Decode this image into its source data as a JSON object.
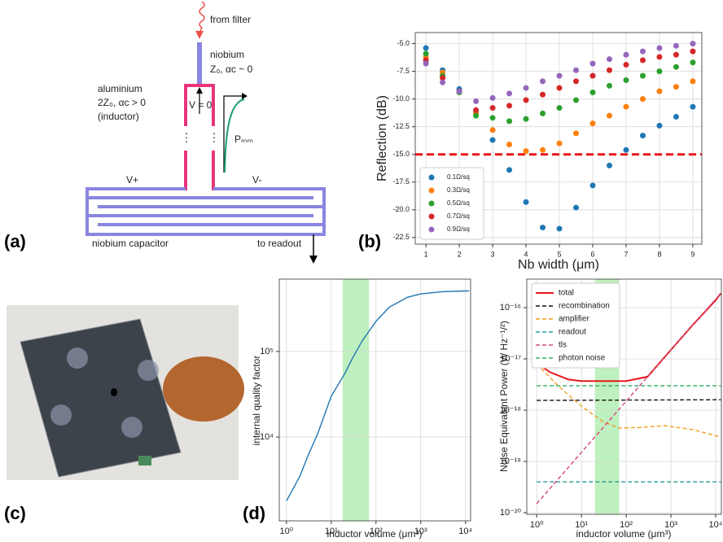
{
  "panel_labels": [
    "(a)",
    "(b)",
    "(c)",
    "(d)"
  ],
  "diagram": {
    "from_filter": "from filter",
    "niobium": "niobium",
    "nb_params": "Z₀, αc ~ 0",
    "aluminium": "aluminium",
    "al_params": "2Z₀, αc > 0",
    "inductor": "(inductor)",
    "v_zero": "V = 0",
    "pmm": "Pₘₘ",
    "v_plus": "V+",
    "v_minus": "V-",
    "capacitor": "niobium capacitor",
    "readout": "to readout"
  },
  "chart_data": [
    {
      "type": "scatter",
      "xlabel": "Nb width (μm)",
      "ylabel": "Reflection (dB)",
      "x": [
        1,
        1.5,
        2,
        2.5,
        3,
        3.5,
        4,
        4.5,
        5,
        5.5,
        6,
        6.5,
        7,
        7.5,
        8,
        8.5,
        9
      ],
      "xlim": [
        0.68,
        9.27
      ],
      "xticks": [
        1,
        2,
        3,
        4,
        5,
        6,
        7,
        8,
        9
      ],
      "ylim": [
        -23.1,
        -4.0
      ],
      "yticks": [
        -22.5,
        {
          "value": -20,
          "label": "-20.0"
        },
        -17.5,
        {
          "value": -15,
          "label": "-15.0"
        },
        -12.5,
        {
          "value": -10,
          "label": "-10.0"
        },
        -7.5,
        {
          "value": -5,
          "label": "-5.0"
        }
      ],
      "grid": true,
      "legend": "lower left",
      "threshold": {
        "value": -15,
        "color": "#e8171d"
      },
      "series": [
        {
          "name": "0.1Ω/sq",
          "color": "#1f77b4",
          "values": [
            -5.4,
            -7.4,
            -9.1,
            -11.2,
            -13.7,
            -16.4,
            -19.3,
            -21.6,
            -21.7,
            -19.8,
            -17.8,
            -16.0,
            -14.6,
            -13.3,
            -12.4,
            -11.6,
            -10.7
          ]
        },
        {
          "name": "0.3Ω/sq",
          "color": "#ff7f0e",
          "values": [
            -6.2,
            -7.6,
            -9.3,
            -11.3,
            -12.8,
            -14.1,
            -14.7,
            -14.6,
            -14.0,
            -13.1,
            -12.2,
            -11.5,
            -10.7,
            -10.0,
            -9.3,
            -8.9,
            -8.4
          ]
        },
        {
          "name": "0.5Ω/sq",
          "color": "#2ca02c",
          "values": [
            -5.9,
            -7.9,
            -9.4,
            -11.5,
            -11.7,
            -12.0,
            -11.8,
            -11.3,
            -10.8,
            -10.1,
            -9.4,
            -8.8,
            -8.3,
            -7.9,
            -7.5,
            -7.1,
            -6.7
          ]
        },
        {
          "name": "0.7Ω/sq",
          "color": "#d62728",
          "values": [
            -6.5,
            -8.1,
            -9.3,
            -11.0,
            -10.8,
            -10.6,
            -10.1,
            -9.6,
            -9.0,
            -8.4,
            -7.9,
            -7.4,
            -6.9,
            -6.5,
            -6.2,
            -6.0,
            -5.7
          ]
        },
        {
          "name": "0.9Ω/sq",
          "color": "#9467bd",
          "values": [
            -6.8,
            -8.5,
            -9.3,
            -10.2,
            -9.9,
            -9.5,
            -9.0,
            -8.4,
            -7.9,
            -7.4,
            -6.8,
            -6.4,
            -6.0,
            -5.7,
            -5.4,
            -5.2,
            -5.0
          ]
        }
      ]
    },
    {
      "type": "line",
      "xlabel": "inductor volume (μm³)",
      "ylabel": "internal quality factor",
      "xscale": "log",
      "yscale": "log",
      "grid": true,
      "xlim": [
        0.69,
        13000
      ],
      "ylim": [
        1050,
        700000
      ],
      "xticks": [
        {
          "value": 1,
          "label": "10⁰"
        },
        {
          "value": 10,
          "label": "10¹"
        },
        {
          "value": 100,
          "label": "10²"
        },
        {
          "value": 1000,
          "label": "10³"
        },
        {
          "value": 10000,
          "label": "10⁴"
        }
      ],
      "yticks": [
        {
          "value": 10000,
          "label": "10⁴"
        },
        {
          "value": 100000,
          "label": "10⁵"
        }
      ],
      "shade": {
        "range": [
          18,
          70
        ],
        "color": "#bff0bf"
      },
      "series": [
        {
          "color": "#1f77b4",
          "x": [
            1,
            2,
            3,
            5,
            10,
            20,
            30,
            50,
            100,
            200,
            300,
            500,
            1000,
            3000,
            10000,
            12000
          ],
          "values": [
            1800,
            3500,
            6000,
            11000,
            30000,
            55000,
            84000,
            135000,
            225000,
            330000,
            370000,
            430000,
            470000,
            500000,
            510000,
            510000
          ]
        }
      ]
    },
    {
      "type": "line",
      "xlabel": "inductor volume (μm³)",
      "ylabel": "Noise Equivalent Power (W Hz⁻¹/²)",
      "xscale": "log",
      "yscale": "log",
      "grid": true,
      "legend": "upper left",
      "xlim": [
        0.6,
        13400
      ],
      "ylim": [
        9.3e-21,
        3.6e-16
      ],
      "xticks": [
        {
          "value": 1,
          "label": "10⁰"
        },
        {
          "value": 10,
          "label": "10¹"
        },
        {
          "value": 100,
          "label": "10²"
        },
        {
          "value": 1000,
          "label": "10³"
        },
        {
          "value": 10000,
          "label": "10⁴"
        }
      ],
      "yticks": [
        {
          "value": 1e-20,
          "label": "10⁻²⁰"
        },
        {
          "value": 1e-19,
          "label": "10⁻¹⁹"
        },
        {
          "value": 1e-18,
          "label": "10⁻¹⁸"
        },
        {
          "value": 1e-17,
          "label": "10⁻¹⁷"
        },
        {
          "value": 1e-16,
          "label": "10⁻¹⁶"
        }
      ],
      "shade": {
        "range": [
          20,
          70
        ],
        "color": "#bff0bf"
      },
      "series": [
        {
          "name": "total",
          "color": "#e41a1c",
          "dash": false,
          "x": [
            1,
            2,
            5,
            10,
            100,
            300,
            1000,
            3000,
            10000,
            13000
          ],
          "values": [
            8.3e-18,
            5.5e-18,
            4e-18,
            3.7e-18,
            3.7e-18,
            4.5e-18,
            1.5e-17,
            4.5e-17,
            1.4e-16,
            1.9e-16
          ]
        },
        {
          "name": "recombination",
          "color": "#111111",
          "dash": true,
          "x": [
            1,
            13000
          ],
          "values": [
            1.55e-18,
            1.6e-18
          ]
        },
        {
          "name": "amplifier",
          "color": "#f0a020",
          "dash": true,
          "x": [
            1,
            3,
            10,
            30,
            70,
            200,
            700,
            3000,
            13000
          ],
          "values": [
            8e-18,
            3e-18,
            1.2e-18,
            6e-19,
            4.5e-19,
            4.6e-19,
            5e-19,
            4.2e-19,
            3e-19
          ]
        },
        {
          "name": "readout",
          "color": "#2a9d8f",
          "dash": true,
          "x": [
            1,
            13000
          ],
          "values": [
            4e-20,
            4e-20
          ]
        },
        {
          "name": "tls",
          "color": "#d6477a",
          "dash": true,
          "x": [
            1,
            10,
            100,
            1000,
            13000
          ],
          "values": [
            1.5e-20,
            1.5e-19,
            1.5e-18,
            1.5e-17,
            1.9e-16
          ]
        },
        {
          "name": "photon noise",
          "color": "#3cb371",
          "dash": true,
          "x": [
            1,
            13000
          ],
          "values": [
            3e-18,
            3e-18
          ]
        }
      ]
    }
  ]
}
